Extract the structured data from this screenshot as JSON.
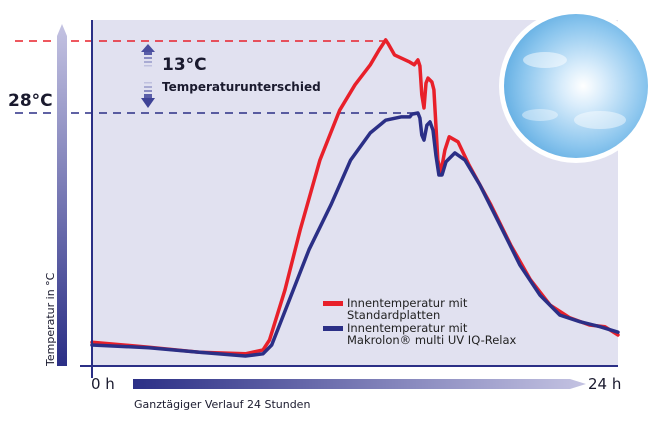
{
  "chart_data": {
    "type": "line",
    "title": "",
    "xlabel": "Ganztägiger Verlauf 24 Stunden",
    "ylabel": "Temperatur in °C",
    "x_tick_labels": [
      "0 h",
      "24 h"
    ],
    "xlim": [
      0,
      24
    ],
    "ylim": [
      -17.7,
      44.8
    ],
    "grid": false,
    "legend_placement": "bottom-right",
    "reference_lines": [
      {
        "value": 41,
        "color": "#e8202a"
      },
      {
        "value": 28,
        "color": "#2b2f86",
        "label": "28°C"
      }
    ],
    "annotation": {
      "value": "13°C",
      "text": "Temperaturunterschied"
    },
    "colors": {
      "background": "#e1e1f0",
      "axis": "#2b2f86"
    },
    "series": [
      {
        "name": "Innentemperatur mit Standardplatten",
        "color": "#e8202a",
        "x": [
          0.0,
          2.6,
          4.9,
          7.0,
          7.8,
          8.1,
          8.8,
          9.5,
          10.4,
          11.3,
          12.0,
          12.7,
          13.1,
          13.4,
          13.5,
          13.8,
          14.5,
          14.7,
          14.87,
          14.96,
          15.05,
          15.15,
          15.24,
          15.33,
          15.51,
          15.6,
          15.69,
          15.78,
          15.92,
          16.1,
          16.3,
          16.7,
          17.2,
          18.2,
          19.1,
          20.0,
          20.9,
          21.8,
          22.7,
          23.4,
          24.0
        ],
        "y": [
          -13.4,
          -14.3,
          -15.2,
          -15.5,
          -14.8,
          -13.0,
          -4.0,
          6.9,
          19.5,
          28.5,
          33.1,
          36.7,
          39.4,
          41.2,
          40.6,
          38.5,
          37.2,
          36.7,
          37.6,
          36.5,
          31.3,
          28.9,
          33.4,
          34.3,
          33.6,
          32.2,
          25.8,
          19.5,
          17.3,
          21.3,
          23.7,
          22.8,
          18.6,
          11.4,
          4.2,
          -2.1,
          -6.7,
          -9.0,
          -10.3,
          -10.6,
          -12.1
        ]
      },
      {
        "name": "Innentemperatur mit Makrolon® multi UV IQ-Relax",
        "color": "#2b2f86",
        "x": [
          0.0,
          2.6,
          4.9,
          7.0,
          7.8,
          8.2,
          9.0,
          9.9,
          10.9,
          11.8,
          12.7,
          13.4,
          14.1,
          14.5,
          14.6,
          14.87,
          14.96,
          15.05,
          15.15,
          15.28,
          15.42,
          15.56,
          15.69,
          15.83,
          15.97,
          16.15,
          16.56,
          17.02,
          17.7,
          18.61,
          19.53,
          20.44,
          21.35,
          22.26,
          23.18,
          24.0
        ],
        "y": [
          -13.9,
          -14.4,
          -15.2,
          -15.9,
          -15.5,
          -13.9,
          -5.8,
          3.3,
          11.4,
          19.5,
          24.4,
          26.7,
          27.3,
          27.3,
          27.8,
          28.0,
          27.1,
          24.0,
          23.1,
          25.8,
          26.4,
          24.9,
          20.4,
          16.8,
          16.8,
          19.2,
          20.8,
          19.5,
          15.0,
          7.8,
          0.5,
          -4.9,
          -8.5,
          -9.7,
          -10.6,
          -11.6
        ]
      }
    ]
  }
}
